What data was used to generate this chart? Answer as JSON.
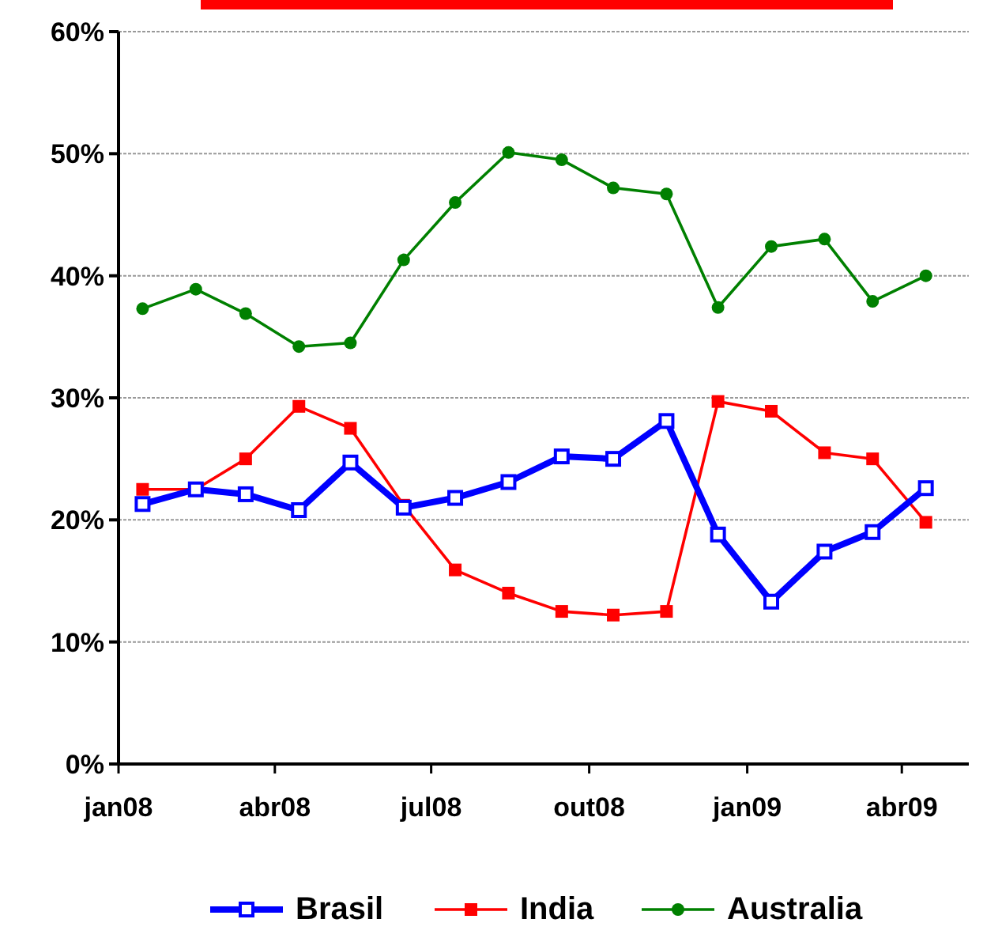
{
  "chart_data": {
    "type": "line",
    "x": [
      "2008-01-15",
      "2008-02-15",
      "2008-03-15",
      "2008-04-15",
      "2008-05-15",
      "2008-06-15",
      "2008-07-15",
      "2008-08-15",
      "2008-09-15",
      "2008-10-15",
      "2008-11-15",
      "2008-12-15",
      "2009-01-15",
      "2009-02-15",
      "2009-03-15",
      "2009-04-15"
    ],
    "xlim": [
      "2008-01-01",
      "2009-05-10"
    ],
    "xticks": [
      {
        "value": "2008-01-01",
        "label": "jan08"
      },
      {
        "value": "2008-04-01",
        "label": "abr08"
      },
      {
        "value": "2008-07-01",
        "label": "jul08"
      },
      {
        "value": "2008-10-01",
        "label": "out08"
      },
      {
        "value": "2009-01-01",
        "label": "jan09"
      },
      {
        "value": "2009-04-01",
        "label": "abr09"
      }
    ],
    "ylim": [
      0,
      60
    ],
    "yticks": [
      {
        "value": 0,
        "label": "0%"
      },
      {
        "value": 10,
        "label": "10%"
      },
      {
        "value": 20,
        "label": "20%"
      },
      {
        "value": 30,
        "label": "30%"
      },
      {
        "value": 40,
        "label": "40%"
      },
      {
        "value": 50,
        "label": "50%"
      },
      {
        "value": 60,
        "label": "60%"
      }
    ],
    "grid": "y",
    "legend": "bottom",
    "series": [
      {
        "name": "Brasil",
        "color": "#0000ff",
        "marker": "square",
        "values": [
          21.3,
          22.5,
          22.1,
          20.8,
          24.7,
          21,
          21.8,
          23.1,
          25.2,
          25,
          28.1,
          18.8,
          13.3,
          17.4,
          19,
          22.6
        ]
      },
      {
        "name": "India",
        "color": "#ff0000",
        "marker": "square",
        "values": [
          22.5,
          22.5,
          25,
          29.3,
          27.5,
          21.2,
          15.9,
          14,
          12.5,
          12.2,
          12.5,
          29.7,
          28.9,
          25.5,
          25,
          19.8
        ]
      },
      {
        "name": "Australia",
        "color": "#008000",
        "marker": "circle",
        "values": [
          37.3,
          38.9,
          36.9,
          34.2,
          34.5,
          41.3,
          46,
          50.1,
          49.5,
          47.2,
          46.7,
          37.4,
          42.4,
          43,
          37.9,
          40
        ]
      }
    ]
  }
}
